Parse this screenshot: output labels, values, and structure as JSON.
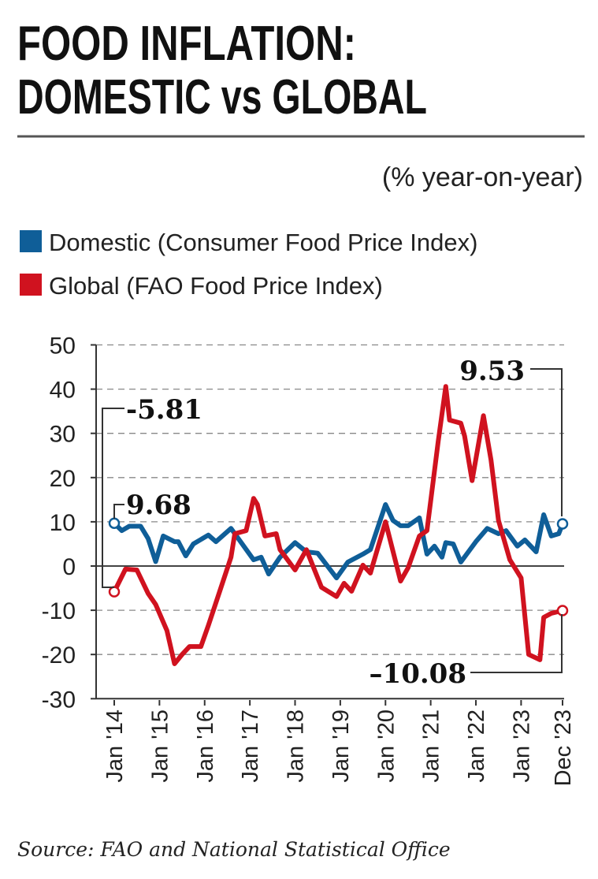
{
  "chart_data": {
    "type": "line",
    "title": "FOOD INFLATION:",
    "title_line2": "DOMESTIC vs GLOBAL",
    "subtitle": "(% year-on-year)",
    "xlabel": "",
    "ylabel": "",
    "ylim": [
      -30,
      50
    ],
    "yticks": [
      "50",
      "40",
      "30",
      "20",
      "10",
      "0",
      "-10",
      "-20",
      "-30"
    ],
    "xlim": [
      "2014-01",
      "2023-12"
    ],
    "xticks": [
      {
        "x": "2014-01",
        "label": "Jan '14"
      },
      {
        "x": "2015-01",
        "label": "Jan '15"
      },
      {
        "x": "2016-01",
        "label": "Jan '16"
      },
      {
        "x": "2017-01",
        "label": "Jan '17"
      },
      {
        "x": "2018-01",
        "label": "Jan '18"
      },
      {
        "x": "2019-01",
        "label": "Jan '19"
      },
      {
        "x": "2020-01",
        "label": "Jan '20"
      },
      {
        "x": "2021-01",
        "label": "Jan '21"
      },
      {
        "x": "2022-01",
        "label": "Jan '22"
      },
      {
        "x": "2023-01",
        "label": "Jan '23"
      },
      {
        "x": "2023-12",
        "label": "Dec '23"
      }
    ],
    "grid": true,
    "legend_placement": "top-left",
    "series": [
      {
        "name": "Domestic (Consumer Food Price Index)",
        "color": "#0f5e98",
        "points": [
          [
            "2014-01",
            9.68
          ],
          [
            "2014-03",
            8
          ],
          [
            "2014-05",
            9
          ],
          [
            "2014-08",
            9
          ],
          [
            "2014-10",
            6.2
          ],
          [
            "2014-12",
            1
          ],
          [
            "2015-02",
            6.8
          ],
          [
            "2015-05",
            5.5
          ],
          [
            "2015-06",
            5.5
          ],
          [
            "2015-08",
            2.3
          ],
          [
            "2015-10",
            5
          ],
          [
            "2016-02",
            7
          ],
          [
            "2016-04",
            5.5
          ],
          [
            "2016-08",
            8.5
          ],
          [
            "2017-02",
            1.4
          ],
          [
            "2017-04",
            2
          ],
          [
            "2017-06",
            -1.8
          ],
          [
            "2017-09",
            2
          ],
          [
            "2018-01",
            5.3
          ],
          [
            "2018-04",
            3.2
          ],
          [
            "2018-07",
            2.9
          ],
          [
            "2018-12",
            -2.7
          ],
          [
            "2019-03",
            0.9
          ],
          [
            "2019-07",
            2.7
          ],
          [
            "2019-09",
            3.7
          ],
          [
            "2020-01",
            13.9
          ],
          [
            "2020-03",
            10.3
          ],
          [
            "2020-05",
            9.1
          ],
          [
            "2020-07",
            9.1
          ],
          [
            "2020-10",
            10.9
          ],
          [
            "2020-12",
            2.7
          ],
          [
            "2021-02",
            4.5
          ],
          [
            "2021-04",
            2
          ],
          [
            "2021-05",
            5.3
          ],
          [
            "2021-07",
            5
          ],
          [
            "2021-09",
            0.9
          ],
          [
            "2022-01",
            5.5
          ],
          [
            "2022-04",
            8.5
          ],
          [
            "2022-07",
            7.3
          ],
          [
            "2022-09",
            8
          ],
          [
            "2022-12",
            4.5
          ],
          [
            "2023-02",
            5.9
          ],
          [
            "2023-05",
            3.2
          ],
          [
            "2023-07",
            11.6
          ],
          [
            "2023-09",
            6.8
          ],
          [
            "2023-11",
            7.3
          ],
          [
            "2023-12",
            9.53
          ]
        ]
      },
      {
        "name": "Global (FAO Food Price Index)",
        "color": "#d0121f",
        "points": [
          [
            "2014-01",
            -5.81
          ],
          [
            "2014-04",
            -0.7
          ],
          [
            "2014-07",
            -0.9
          ],
          [
            "2014-10",
            -6.2
          ],
          [
            "2014-12",
            -8.7
          ],
          [
            "2015-03",
            -14.6
          ],
          [
            "2015-05",
            -22.1
          ],
          [
            "2015-07",
            -20
          ],
          [
            "2015-09",
            -18.2
          ],
          [
            "2015-12",
            -18.2
          ],
          [
            "2016-02",
            -13.4
          ],
          [
            "2016-05",
            -5.7
          ],
          [
            "2016-08",
            2
          ],
          [
            "2016-09",
            7.3
          ],
          [
            "2016-12",
            8
          ],
          [
            "2017-02",
            15.3
          ],
          [
            "2017-03",
            13.9
          ],
          [
            "2017-05",
            6.8
          ],
          [
            "2017-08",
            7.3
          ],
          [
            "2017-09",
            3.7
          ],
          [
            "2018-01",
            -0.9
          ],
          [
            "2018-04",
            3.7
          ],
          [
            "2018-08",
            -4.8
          ],
          [
            "2018-12",
            -6.9
          ],
          [
            "2019-02",
            -3.9
          ],
          [
            "2019-04",
            -5.7
          ],
          [
            "2019-07",
            0.2
          ],
          [
            "2019-09",
            -1.6
          ],
          [
            "2020-01",
            10
          ],
          [
            "2020-05",
            -3.4
          ],
          [
            "2020-07",
            -0.4
          ],
          [
            "2020-10",
            6.8
          ],
          [
            "2020-12",
            8
          ],
          [
            "2021-03",
            28.2
          ],
          [
            "2021-05",
            40.6
          ],
          [
            "2021-06",
            33
          ],
          [
            "2021-09",
            32.3
          ],
          [
            "2021-10",
            29.4
          ],
          [
            "2021-12",
            19.3
          ],
          [
            "2022-03",
            34
          ],
          [
            "2022-05",
            24
          ],
          [
            "2022-07",
            10.3
          ],
          [
            "2022-10",
            1.4
          ],
          [
            "2023-01",
            -2.7
          ],
          [
            "2023-03",
            -20
          ],
          [
            "2023-06",
            -21.2
          ],
          [
            "2023-07",
            -11.6
          ],
          [
            "2023-09",
            -10.7
          ],
          [
            "2023-12",
            -10.08
          ]
        ]
      }
    ],
    "annotations": {
      "domestic_start": "9.68",
      "global_start": "-5.81",
      "domestic_end": "9.53",
      "global_end": "–10.08"
    },
    "source": "Source: FAO and National Statistical Office"
  }
}
